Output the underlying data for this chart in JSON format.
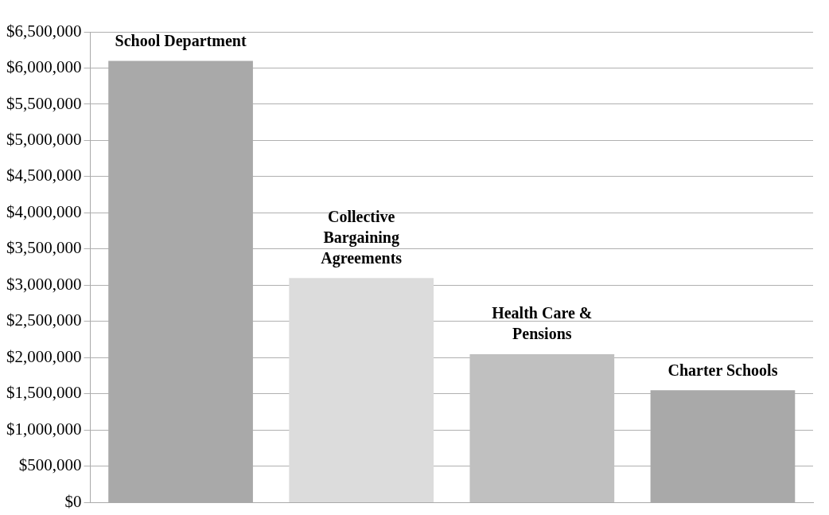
{
  "chart_data": {
    "type": "bar",
    "categories": [
      "School Department",
      "Collective Bargaining Agreements",
      "Health Care & Pensions",
      "Charter Schools"
    ],
    "values": [
      6100000,
      3100000,
      2050000,
      1550000
    ],
    "colors": [
      "#a9a9a9",
      "#dcdcdc",
      "#c0c0c0",
      "#a9a9a9"
    ],
    "ylim": [
      0,
      6500000
    ],
    "yticks": [
      {
        "value": 0,
        "label": "$0"
      },
      {
        "value": 500000,
        "label": "$500,000"
      },
      {
        "value": 1000000,
        "label": "$1,000,000"
      },
      {
        "value": 1500000,
        "label": "$1,500,000"
      },
      {
        "value": 2000000,
        "label": "$2,000,000"
      },
      {
        "value": 2500000,
        "label": "$2,500,000"
      },
      {
        "value": 3000000,
        "label": "$3,000,000"
      },
      {
        "value": 3500000,
        "label": "$3,500,000"
      },
      {
        "value": 4000000,
        "label": "$4,000,000"
      },
      {
        "value": 4500000,
        "label": "$4,500,000"
      },
      {
        "value": 5000000,
        "label": "$5,000,000"
      },
      {
        "value": 5500000,
        "label": "$5,500,000"
      },
      {
        "value": 6000000,
        "label": "$6,000,000"
      },
      {
        "value": 6500000,
        "label": "$6,500,000"
      }
    ],
    "grid": "y",
    "legend": false
  }
}
